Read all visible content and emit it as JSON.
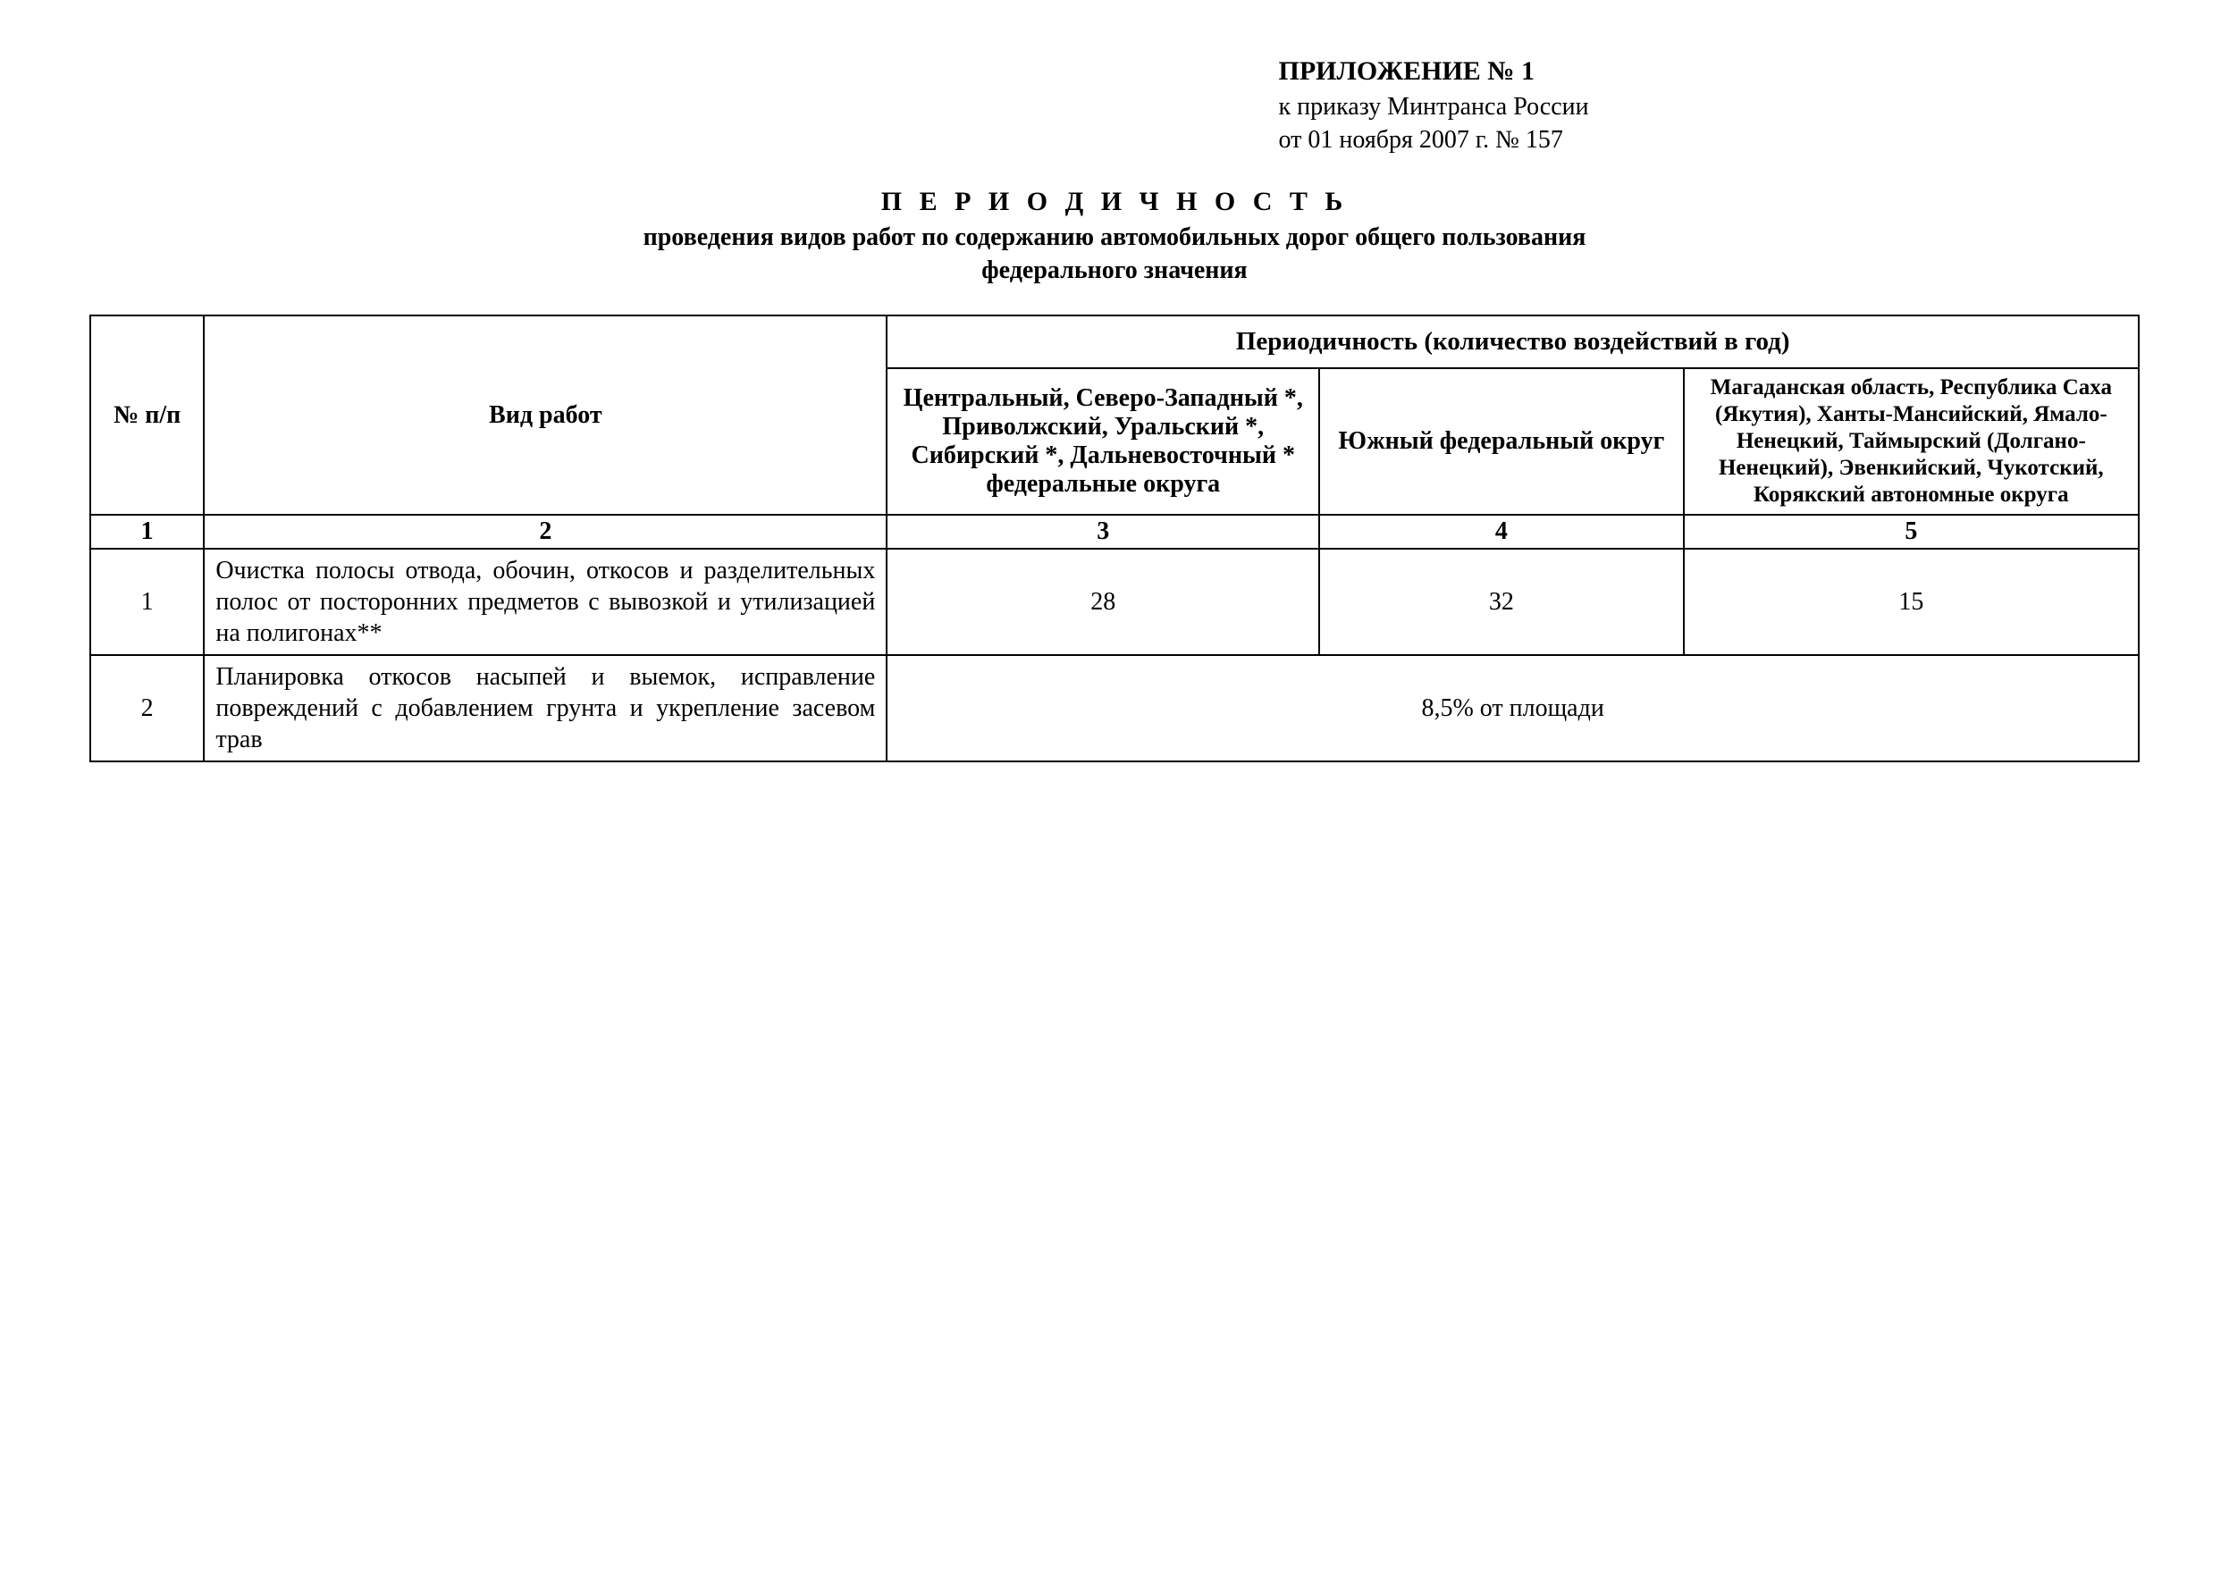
{
  "header": {
    "attachment": "ПРИЛОЖЕНИЕ № 1",
    "to_order": "к приказу Минтранса России",
    "date_line": "от 01 ноября 2007 г. № 157"
  },
  "title": {
    "main": "П Е Р И О Д И Ч Н О С Т Ь",
    "sub1": "проведения видов работ по содержанию автомобильных дорог общего пользования",
    "sub2": "федерального значения"
  },
  "table": {
    "headers": {
      "num": "№ п/п",
      "work": "Вид работ",
      "periodicity": "Периодичность (количество воздействий в год)",
      "region1": "Центральный, Северо-Западный *, Приволжский, Уральский *, Сибирский *, Дальневосточный * федеральные округа",
      "region2": "Южный федеральный округ",
      "region3": "Магаданская область, Республика Саха (Якутия), Ханты-Мансийский, Ямало-Ненецкий, Таймырский (Долгано-Ненецкий), Эвенкийский, Чукотский, Корякский автономные округа"
    },
    "col_numbers": [
      "1",
      "2",
      "3",
      "4",
      "5"
    ],
    "rows": [
      {
        "num": "1",
        "work": "Очистка полосы отвода, обочин, откосов и разделительных полос от посторонних предметов с вывозкой и утилизацией на полигонах**",
        "r1": "28",
        "r2": "32",
        "r3": "15"
      },
      {
        "num": "2",
        "work": "Планировка откосов насыпей и выемок, исправление повреждений с добавле­нием грунта и укрепление засевом трав",
        "span": "8,5% от площади"
      }
    ]
  },
  "style": {
    "font_family": "Times New Roman",
    "text_color": "#000000",
    "background": "#ffffff",
    "border_color": "#000000",
    "base_fontsize": 28,
    "title_fontsize": 30,
    "small_header_fontsize": 25
  }
}
